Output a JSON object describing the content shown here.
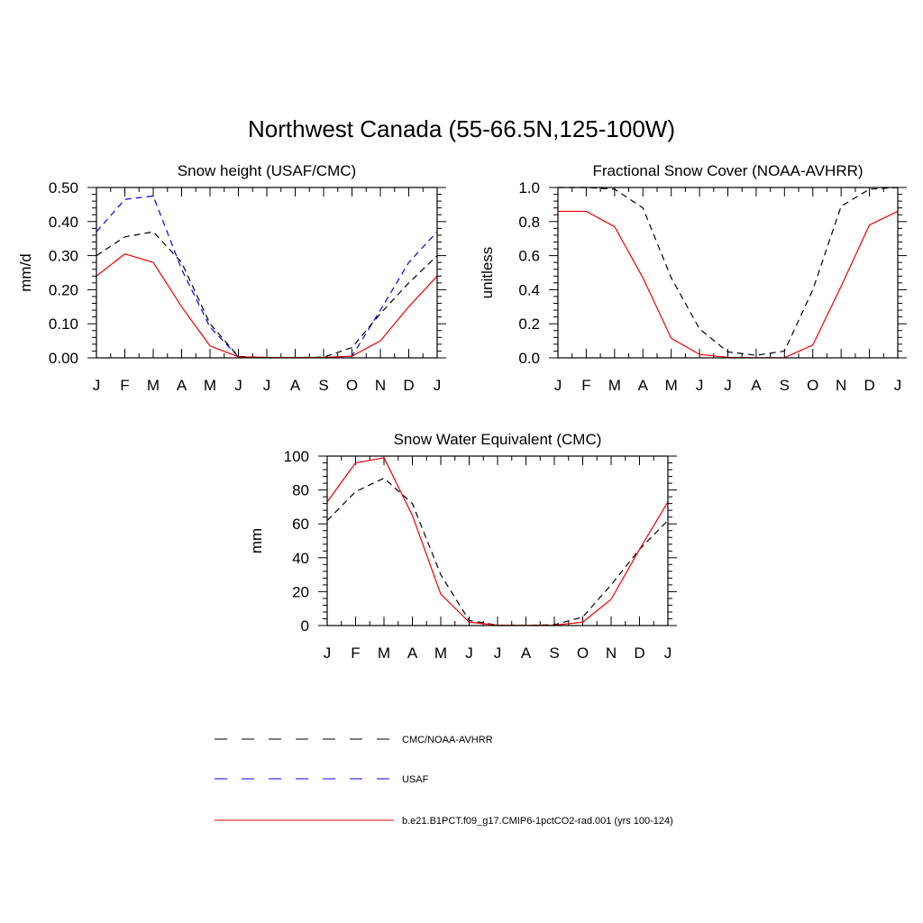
{
  "figure": {
    "title": "Northwest Canada (55-66.5N,125-100W)"
  },
  "colors": {
    "cmc": "#000000",
    "usaf": "#0000ee",
    "model": "#ee0000"
  },
  "legend": {
    "entries": [
      {
        "label": "CMC/NOAA-AVHRR",
        "color": "#000000",
        "style": "dashed"
      },
      {
        "label": "USAF",
        "color": "#0000ee",
        "style": "dashed"
      },
      {
        "label": "b.e21.B1PCT.f09_g17.CMIP6-1pctCO2-rad.001 (yrs 100-124)",
        "color": "#ee0000",
        "style": "solid"
      }
    ]
  },
  "chart_data": [
    {
      "type": "line",
      "title": "Snow height (USAF/CMC)",
      "xlabel": "",
      "ylabel": "mm/d",
      "categories": [
        "J",
        "F",
        "M",
        "A",
        "M",
        "J",
        "J",
        "A",
        "S",
        "O",
        "N",
        "D",
        "J"
      ],
      "ylim": [
        0,
        0.5
      ],
      "yticks": [
        "0.00",
        "0.10",
        "0.20",
        "0.30",
        "0.40",
        "0.50"
      ],
      "yticks_values": [
        0,
        0.1,
        0.2,
        0.3,
        0.4,
        0.5
      ],
      "grid": false,
      "series": [
        {
          "name": "USAF",
          "color": "#0000ee",
          "style": "dashed",
          "values": [
            0.37,
            0.465,
            0.475,
            0.26,
            0.09,
            0.003,
            0.001,
            0.001,
            0.001,
            0.005,
            0.14,
            0.28,
            0.37
          ]
        },
        {
          "name": "CMC/NOAA-AVHRR",
          "color": "#000000",
          "style": "dashed",
          "values": [
            0.3,
            0.355,
            0.37,
            0.28,
            0.1,
            0.004,
            0.001,
            0.001,
            0.002,
            0.03,
            0.13,
            0.22,
            0.3
          ]
        },
        {
          "name": "b.e21.B1PCT.f09_g17.CMIP6-1pctCO2-rad.001 (yrs 100-124)",
          "color": "#ee0000",
          "style": "solid",
          "values": [
            0.24,
            0.305,
            0.28,
            0.15,
            0.035,
            0.003,
            0.001,
            0.001,
            0.001,
            0.005,
            0.05,
            0.15,
            0.24
          ]
        }
      ]
    },
    {
      "type": "line",
      "title": "Fractional Snow Cover (NOAA-AVHRR)",
      "xlabel": "",
      "ylabel": "unitless",
      "categories": [
        "J",
        "F",
        "M",
        "A",
        "M",
        "J",
        "J",
        "A",
        "S",
        "O",
        "N",
        "D",
        "J"
      ],
      "ylim": [
        0,
        1.0
      ],
      "yticks": [
        "0.0",
        "0.2",
        "0.4",
        "0.6",
        "0.8",
        "1.0"
      ],
      "yticks_values": [
        0,
        0.2,
        0.4,
        0.6,
        0.8,
        1.0
      ],
      "grid": false,
      "series": [
        {
          "name": "CMC/NOAA-AVHRR",
          "color": "#000000",
          "style": "dashed",
          "values": [
            1.0,
            1.0,
            0.99,
            0.88,
            0.47,
            0.17,
            0.035,
            0.015,
            0.04,
            0.4,
            0.89,
            0.99,
            1.0
          ]
        },
        {
          "name": "b.e21.B1PCT.f09_g17.CMIP6-1pctCO2-rad.001 (yrs 100-124)",
          "color": "#ee0000",
          "style": "solid",
          "values": [
            0.86,
            0.86,
            0.77,
            0.47,
            0.115,
            0.02,
            0.003,
            0.001,
            0.001,
            0.075,
            0.42,
            0.78,
            0.86
          ]
        }
      ]
    },
    {
      "type": "line",
      "title": "Snow Water Equivalent (CMC)",
      "xlabel": "",
      "ylabel": "mm",
      "categories": [
        "J",
        "F",
        "M",
        "A",
        "M",
        "J",
        "J",
        "A",
        "S",
        "O",
        "N",
        "D",
        "J"
      ],
      "ylim": [
        0,
        100
      ],
      "yticks": [
        "0",
        "20",
        "40",
        "60",
        "80",
        "100"
      ],
      "yticks_values": [
        0,
        20,
        40,
        60,
        80,
        100
      ],
      "grid": false,
      "series": [
        {
          "name": "CMC/NOAA-AVHRR",
          "color": "#000000",
          "style": "dashed",
          "values": [
            62,
            79,
            87,
            72,
            30,
            3,
            0.2,
            0.1,
            0.5,
            5,
            24,
            45,
            62
          ]
        },
        {
          "name": "b.e21.B1PCT.f09_g17.CMIP6-1pctCO2-rad.001 (yrs 100-124)",
          "color": "#ee0000",
          "style": "solid",
          "values": [
            73,
            96,
            99,
            65,
            18.5,
            2,
            0.2,
            0.1,
            0.2,
            2,
            15.5,
            45,
            73
          ]
        }
      ]
    }
  ]
}
